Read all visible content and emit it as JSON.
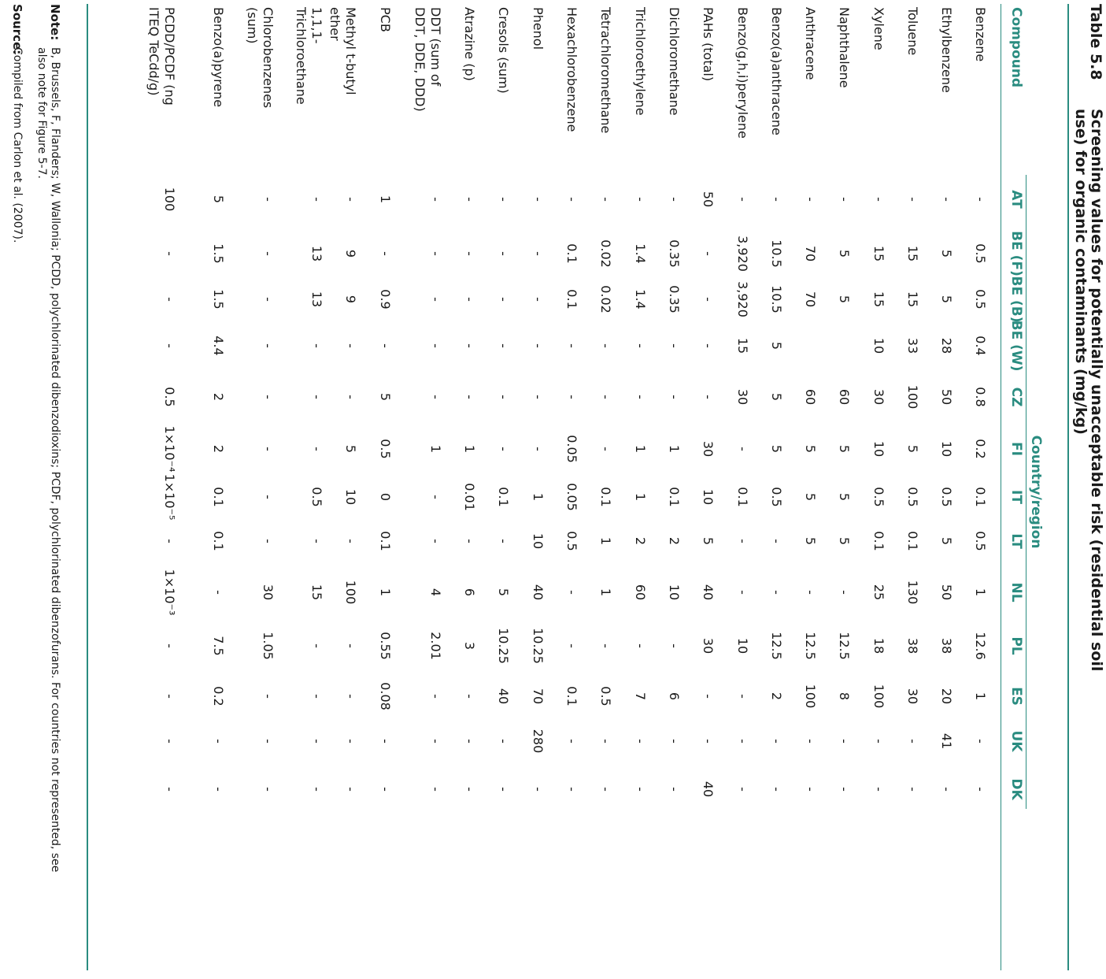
{
  "title": {
    "number": "Table 5.8",
    "text": "Screening values for potentially unacceptable risk (residential soil use) for organic contaminants (mg/kg)"
  },
  "header": {
    "compound": "Compound",
    "group": "Country/region",
    "countries": [
      "AT",
      "BE (F)",
      "BE (B)",
      "BE (W)",
      "CZ",
      "FI",
      "IT",
      "LT",
      "NL",
      "PL",
      "ES",
      "UK",
      "DK"
    ]
  },
  "rows": [
    {
      "name": "Benzene",
      "values": [
        "-",
        "0.5",
        "0.5",
        "0.4",
        "0.8",
        "0.2",
        "0.1",
        "0.5",
        "1",
        "12.6",
        "1",
        "-",
        "-"
      ]
    },
    {
      "name": "Ethylbenzene",
      "values": [
        "-",
        "5",
        "5",
        "28",
        "50",
        "10",
        "0.5",
        "5",
        "50",
        "38",
        "20",
        "41",
        "-"
      ]
    },
    {
      "name": "Toluene",
      "values": [
        "-",
        "15",
        "15",
        "33",
        "100",
        "5",
        "0.5",
        "0.1",
        "130",
        "38",
        "30",
        "-",
        "-"
      ]
    },
    {
      "name": "Xylene",
      "values": [
        "-",
        "15",
        "15",
        "10",
        "30",
        "10",
        "0.5",
        "0.1",
        "25",
        "18",
        "100",
        "-",
        "-"
      ]
    },
    {
      "name": "Naphthalene",
      "values": [
        "-",
        "5",
        "5",
        "",
        "60",
        "5",
        "5",
        "5",
        "-",
        "12.5",
        "8",
        "-",
        "-"
      ]
    },
    {
      "name": "Anthracene",
      "values": [
        "-",
        "70",
        "70",
        "",
        "60",
        "5",
        "5",
        "5",
        "-",
        "12.5",
        "100",
        "-",
        "-"
      ]
    },
    {
      "name": "Benzo(a)anthracene",
      "values": [
        "-",
        "10.5",
        "10.5",
        "5",
        "5",
        "5",
        "0.5",
        "-",
        "-",
        "12.5",
        "2",
        "-",
        "-"
      ]
    },
    {
      "name": "Benzo(g,h,i)perylene",
      "values": [
        "-",
        "3,920",
        "3,920",
        "15",
        "30",
        "-",
        "0.1",
        "-",
        "-",
        "10",
        "-",
        "-",
        "-"
      ]
    },
    {
      "name": "PAHs (total)",
      "values": [
        "50",
        "-",
        "-",
        "-",
        "-",
        "30",
        "10",
        "5",
        "40",
        "30",
        "-",
        "-",
        "40"
      ]
    },
    {
      "name": "Dichloromethane",
      "values": [
        "-",
        "0.35",
        "0.35",
        "-",
        "-",
        "1",
        "0.1",
        "2",
        "10",
        "-",
        "6",
        "-",
        "-"
      ]
    },
    {
      "name": "Trichloroethylene",
      "values": [
        "-",
        "1.4",
        "1.4",
        "-",
        "-",
        "1",
        "1",
        "2",
        "60",
        "-",
        "7",
        "-",
        "-"
      ]
    },
    {
      "name": "Tetrachloromethane",
      "values": [
        "-",
        "0.02",
        "0.02",
        "-",
        "-",
        "-",
        "0.1",
        "1",
        "1",
        "-",
        "0.5",
        "-",
        "-"
      ]
    },
    {
      "name": "Hexachlorobenzene",
      "values": [
        "-",
        "0.1",
        "0.1",
        "-",
        "-",
        "0.05",
        "0.05",
        "0.5",
        "-",
        "-",
        "0.1",
        "-",
        "-"
      ]
    },
    {
      "name": "Phenol",
      "values": [
        "-",
        "-",
        "-",
        "-",
        "-",
        "-",
        "1",
        "10",
        "40",
        "10.25",
        "70",
        "280",
        "-"
      ]
    },
    {
      "name": "Cresols (sum)",
      "values": [
        "-",
        "-",
        "-",
        "-",
        "-",
        "-",
        "0.1",
        "-",
        "5",
        "10.25",
        "40",
        "-",
        "-"
      ]
    },
    {
      "name": "Atrazine (p)",
      "values": [
        "-",
        "-",
        "-",
        "-",
        "-",
        "1",
        "0.01",
        "-",
        "6",
        "3",
        "-",
        "-",
        "-"
      ]
    },
    {
      "name": "DDT (sum of DDT, DDE, DDD)",
      "values": [
        "-",
        "-",
        "-",
        "-",
        "-",
        "1",
        "-",
        "-",
        "4",
        "2.01",
        "-",
        "-",
        "-"
      ]
    },
    {
      "name": "PCB",
      "values": [
        "1",
        "-",
        "0.9",
        "-",
        "5",
        "0.5",
        "0",
        "0.1",
        "1",
        "0.55",
        "0.08",
        "-",
        "-"
      ]
    },
    {
      "name": "Methyl t-butyl ether",
      "values": [
        "-",
        "9",
        "9",
        "-",
        "-",
        "5",
        "10",
        "-",
        "100",
        "-",
        "-",
        "-",
        "-"
      ]
    },
    {
      "name": "1,1,1-Trichloroethane",
      "values": [
        "-",
        "13",
        "13",
        "-",
        "-",
        "-",
        "0.5",
        "-",
        "15",
        "-",
        "-",
        "-",
        "-"
      ]
    },
    {
      "name": "Chlorobenzenes (sum)",
      "values": [
        "-",
        "-",
        "-",
        "-",
        "-",
        "-",
        "-",
        "-",
        "30",
        "1.05",
        "-",
        "-",
        "-"
      ]
    },
    {
      "name": "Benzo(a)pyrene",
      "values": [
        "5",
        "1.5",
        "1.5",
        "4.4",
        "2",
        "2",
        "0.1",
        "0.1",
        "-",
        "7.5",
        "0.2",
        "-",
        "-"
      ]
    },
    {
      "name": "PCDD/PCDF (ng ITEQ TeCdd/g)",
      "values": [
        "100",
        "-",
        "-",
        "-",
        "0.5",
        "1×10⁻⁴",
        "1×10⁻⁵",
        "-",
        "1×10⁻³",
        "-",
        "-",
        "-",
        "-"
      ]
    }
  ],
  "note": {
    "label": "Note:",
    "text": "B, Brussels, F, Flanders; W, Wallonia; PCDD, polychlorinated dibenzodioxins; PCDF, polychlorinated dibenzofurans. For countries not represented, see also note for Figure 5-7."
  },
  "source": {
    "label": "Source:",
    "text": "Compiled from Carlon et al. (2007)."
  },
  "colors": {
    "accent": "#2a8c80",
    "text": "#1a1a1a"
  }
}
